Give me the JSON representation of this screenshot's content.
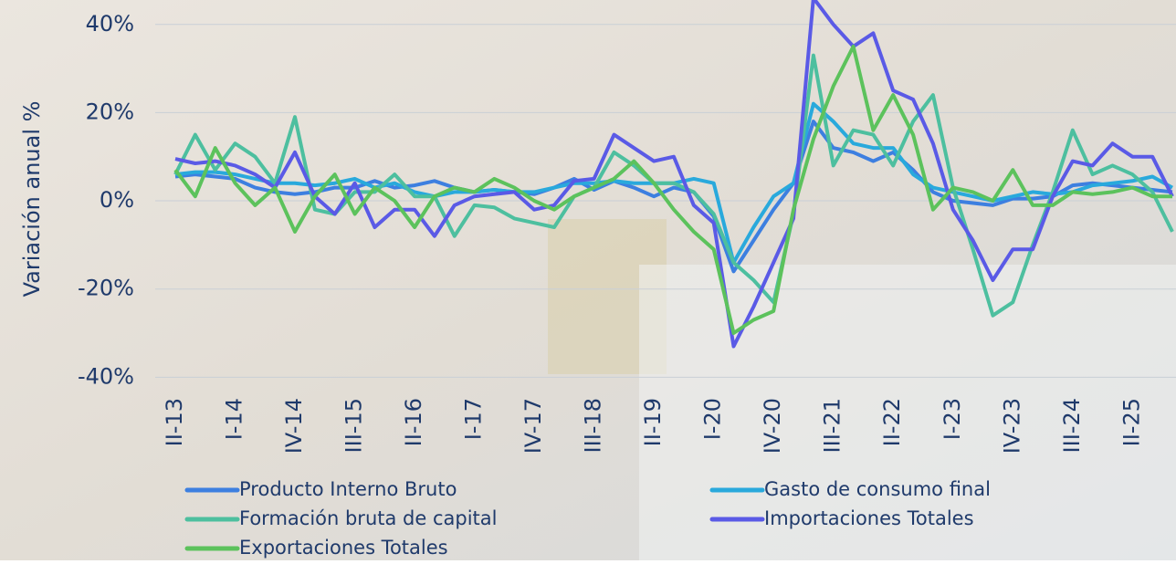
{
  "chart_data": {
    "type": "line",
    "y_axis_label": "Variación anual %",
    "categories": [
      "II-13",
      null,
      null,
      "I-14",
      null,
      null,
      "IV-14",
      null,
      null,
      "III-15",
      null,
      null,
      "II-16",
      null,
      null,
      "I-17",
      null,
      null,
      "IV-17",
      null,
      null,
      "III-18",
      null,
      null,
      "II-19",
      null,
      null,
      "I-20",
      null,
      null,
      "IV-20",
      null,
      null,
      "III-21",
      null,
      null,
      "II-22",
      null,
      null,
      "I-23",
      null,
      null,
      "IV-23",
      null,
      null,
      "III-24",
      null,
      null,
      "II-25",
      null,
      null
    ],
    "ylim": [
      -42,
      45
    ],
    "yticks": [
      {
        "value": -40,
        "label": "-40%"
      },
      {
        "value": -20,
        "label": "-20%"
      },
      {
        "value": 0,
        "label": "0%"
      },
      {
        "value": 20,
        "label": "20%"
      },
      {
        "value": 40,
        "label": "40%"
      }
    ],
    "grid": true,
    "series": [
      {
        "name": "Producto Interno Bruto",
        "color": "#3d7fe0",
        "values": [
          5.5,
          6,
          5.5,
          5,
          3,
          2,
          1.5,
          2,
          3,
          3,
          4.5,
          3,
          3.5,
          4.5,
          3,
          2,
          2.5,
          2,
          1.5,
          3,
          5,
          2.5,
          4.5,
          3,
          1,
          3,
          2,
          -3.5,
          -16,
          -9,
          -2,
          4,
          18,
          12,
          11,
          9,
          11,
          7,
          2,
          0,
          -0.5,
          -1,
          0.5,
          0.5,
          1,
          3.5,
          4,
          3.5,
          3,
          2.5,
          2
        ]
      },
      {
        "name": "Gasto de consumo final",
        "color": "#29a9dc",
        "values": [
          6,
          6.5,
          6.5,
          6,
          5,
          4,
          4,
          3.5,
          4,
          5,
          3,
          4,
          2,
          1,
          2,
          2,
          2.5,
          2,
          2,
          3,
          4,
          4,
          4.5,
          4,
          4,
          4,
          5,
          4,
          -14,
          -6,
          1,
          4,
          22,
          18,
          13,
          12,
          12,
          6,
          3,
          2,
          1,
          0,
          1,
          2,
          1.5,
          2,
          3.5,
          4,
          4.5,
          5.5,
          3
        ]
      },
      {
        "name": "Formación bruta de capital",
        "color": "#4dbf9f",
        "values": [
          6,
          15,
          7,
          13,
          10,
          4,
          19,
          -2,
          -3,
          2,
          2,
          6,
          1,
          1,
          -8,
          -1,
          -1.5,
          -4,
          -5,
          -6,
          1,
          3,
          11,
          8,
          4,
          4,
          2,
          -3,
          -14,
          -18,
          -23,
          -3,
          33,
          8,
          16,
          15,
          8,
          18,
          24,
          3,
          -11,
          -26,
          -23,
          -10,
          2,
          16,
          6,
          8,
          6,
          2,
          -7
        ]
      },
      {
        "name": "Importaciones Totales",
        "color": "#5a5ae6",
        "values": [
          9.5,
          8.5,
          9,
          8,
          6,
          3,
          11,
          1,
          -3,
          4,
          -6,
          -2,
          -2,
          -8,
          -1,
          1,
          1.5,
          2,
          -2,
          -1,
          4.5,
          5,
          15,
          12,
          9,
          10,
          -1,
          -5,
          -33,
          -24,
          -14,
          -4,
          46,
          40,
          35,
          38,
          25,
          23,
          13,
          -2,
          -9,
          -18,
          -11,
          -11,
          1,
          9,
          8,
          13,
          10,
          10,
          1
        ]
      },
      {
        "name": "Exportaciones  Totales",
        "color": "#5cc25c",
        "values": [
          7,
          1,
          12,
          4,
          -1,
          3,
          -7,
          1,
          6,
          -3,
          3,
          0,
          -6,
          1,
          3,
          2,
          5,
          3,
          0,
          -2,
          1,
          3,
          5,
          9,
          4,
          -2,
          -7,
          -11,
          -30,
          -27,
          -25,
          -2,
          14,
          26,
          35,
          16,
          24,
          15,
          -2,
          3,
          2,
          0,
          7,
          -1,
          -1,
          2,
          1.5,
          2,
          3,
          1,
          1
        ]
      }
    ]
  }
}
